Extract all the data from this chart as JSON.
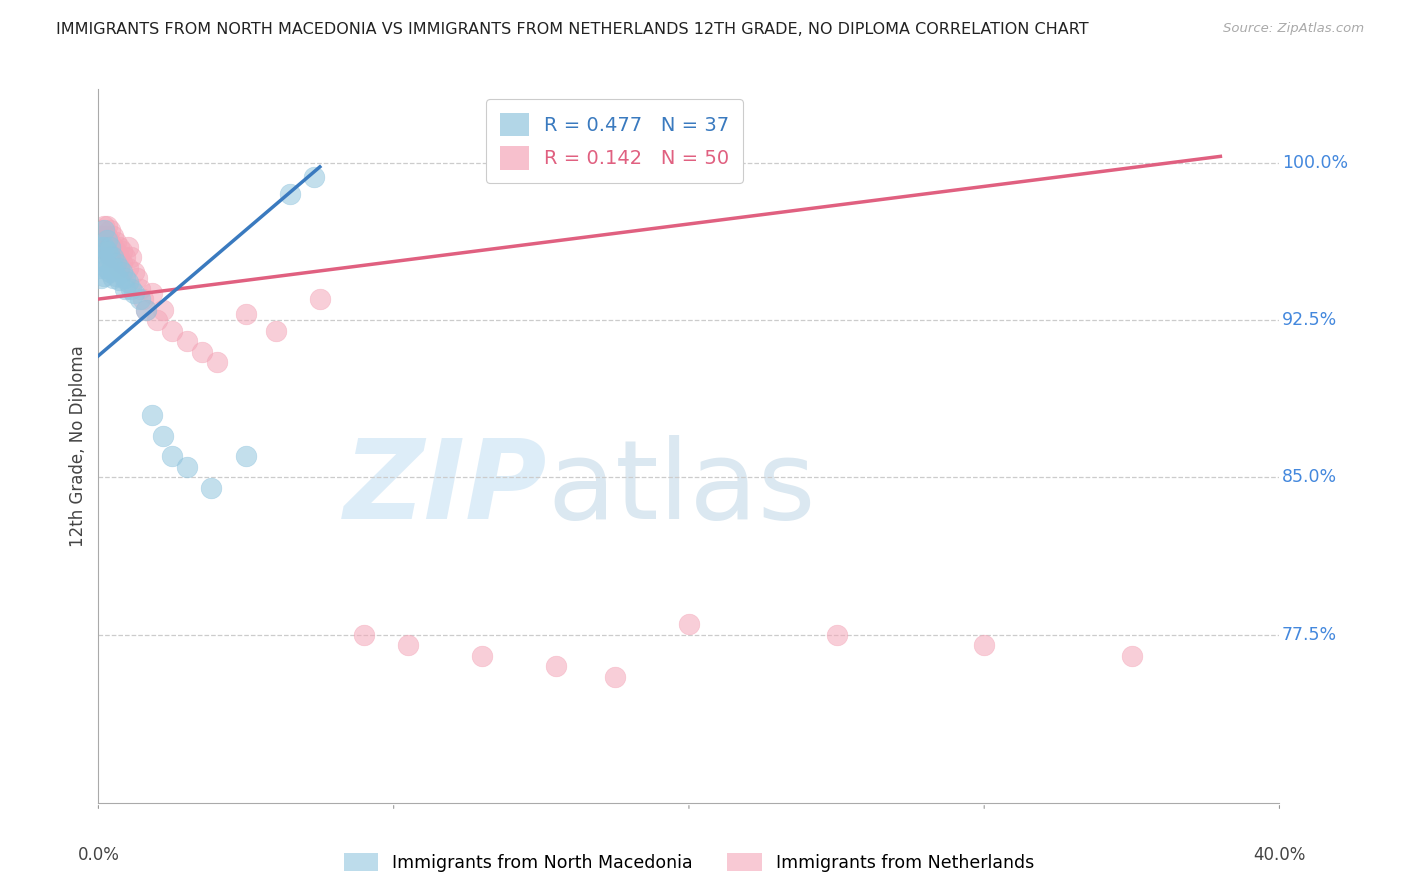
{
  "title": "IMMIGRANTS FROM NORTH MACEDONIA VS IMMIGRANTS FROM NETHERLANDS 12TH GRADE, NO DIPLOMA CORRELATION CHART",
  "source": "Source: ZipAtlas.com",
  "ylabel": "12th Grade, No Diploma",
  "ytick_values": [
    0.775,
    0.85,
    0.925,
    1.0
  ],
  "ytick_labels": [
    "77.5%",
    "85.0%",
    "92.5%",
    "100.0%"
  ],
  "xlim": [
    0.0,
    0.4
  ],
  "ylim": [
    0.695,
    1.035
  ],
  "blue_R": 0.477,
  "blue_N": 37,
  "pink_R": 0.142,
  "pink_N": 50,
  "blue_color": "#92c5de",
  "pink_color": "#f4a6b8",
  "blue_line_color": "#3a7abf",
  "pink_line_color": "#e06080",
  "legend_label_blue": "Immigrants from North Macedonia",
  "legend_label_pink": "Immigrants from Netherlands",
  "blue_line_x": [
    0.0,
    0.075
  ],
  "blue_line_y": [
    0.908,
    0.998
  ],
  "pink_line_x": [
    0.0,
    0.38
  ],
  "pink_line_y": [
    0.935,
    1.003
  ],
  "blue_scatter_x": [
    0.001,
    0.001,
    0.001,
    0.001,
    0.002,
    0.002,
    0.002,
    0.002,
    0.003,
    0.003,
    0.003,
    0.004,
    0.004,
    0.004,
    0.005,
    0.005,
    0.005,
    0.006,
    0.006,
    0.007,
    0.007,
    0.008,
    0.009,
    0.009,
    0.01,
    0.011,
    0.012,
    0.014,
    0.016,
    0.018,
    0.022,
    0.025,
    0.03,
    0.038,
    0.05,
    0.065,
    0.073
  ],
  "blue_scatter_y": [
    0.96,
    0.955,
    0.95,
    0.945,
    0.968,
    0.96,
    0.953,
    0.946,
    0.963,
    0.958,
    0.95,
    0.96,
    0.955,
    0.948,
    0.955,
    0.95,
    0.945,
    0.952,
    0.946,
    0.95,
    0.944,
    0.948,
    0.945,
    0.94,
    0.943,
    0.94,
    0.938,
    0.935,
    0.93,
    0.88,
    0.87,
    0.86,
    0.855,
    0.845,
    0.86,
    0.985,
    0.993
  ],
  "pink_scatter_x": [
    0.001,
    0.001,
    0.002,
    0.002,
    0.002,
    0.003,
    0.003,
    0.003,
    0.003,
    0.004,
    0.004,
    0.004,
    0.005,
    0.005,
    0.005,
    0.006,
    0.006,
    0.007,
    0.007,
    0.007,
    0.008,
    0.008,
    0.009,
    0.01,
    0.01,
    0.011,
    0.012,
    0.013,
    0.014,
    0.015,
    0.016,
    0.018,
    0.02,
    0.022,
    0.025,
    0.03,
    0.035,
    0.04,
    0.05,
    0.06,
    0.075,
    0.09,
    0.105,
    0.13,
    0.155,
    0.175,
    0.2,
    0.25,
    0.3,
    0.35
  ],
  "pink_scatter_y": [
    0.968,
    0.965,
    0.97,
    0.965,
    0.96,
    0.97,
    0.965,
    0.96,
    0.955,
    0.968,
    0.962,
    0.956,
    0.965,
    0.96,
    0.955,
    0.962,
    0.958,
    0.96,
    0.955,
    0.95,
    0.958,
    0.952,
    0.955,
    0.96,
    0.95,
    0.955,
    0.948,
    0.945,
    0.94,
    0.935,
    0.93,
    0.938,
    0.925,
    0.93,
    0.92,
    0.915,
    0.91,
    0.905,
    0.928,
    0.92,
    0.935,
    0.775,
    0.77,
    0.765,
    0.76,
    0.755,
    0.78,
    0.775,
    0.77,
    0.765
  ]
}
